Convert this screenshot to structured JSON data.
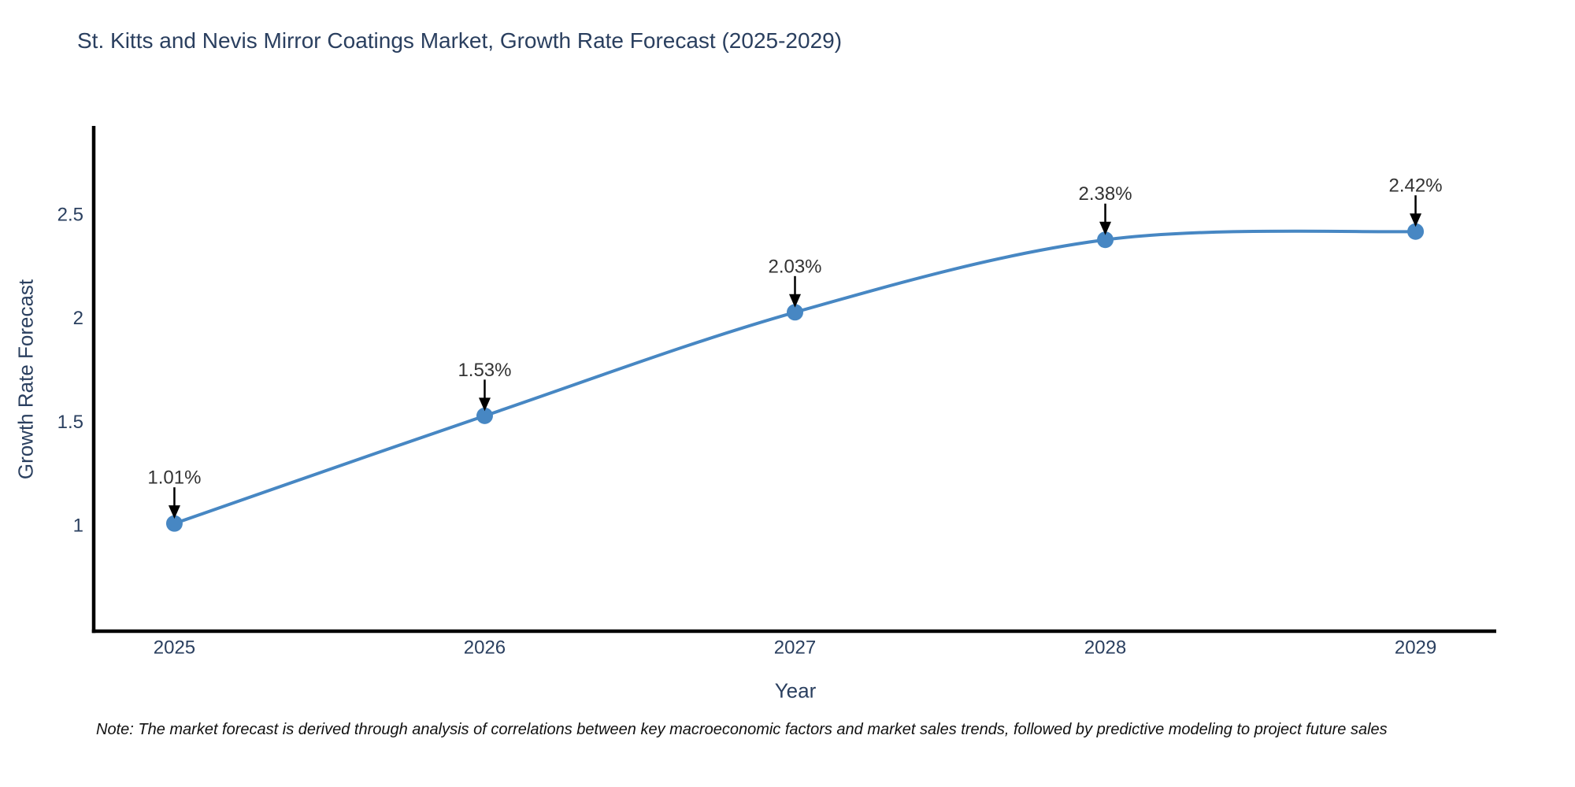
{
  "page": {
    "note": "Note: The market forecast is derived through analysis of correlations between key macroeconomic factors and market sales trends, followed by predictive modeling to project future sales"
  },
  "chart_data": {
    "type": "line",
    "title": "St. Kitts and Nevis Mirror Coatings Market, Growth Rate Forecast (2025-2029)",
    "xlabel": "Year",
    "ylabel": "Growth Rate Forecast",
    "x": [
      2025,
      2026,
      2027,
      2028,
      2029
    ],
    "series": [
      {
        "name": "Growth Rate Forecast",
        "values": [
          1.01,
          1.53,
          2.03,
          2.38,
          2.42
        ]
      }
    ],
    "point_labels": [
      "1.01%",
      "1.53%",
      "2.03%",
      "2.38%",
      "2.42%"
    ],
    "xticks": [
      "2025",
      "2026",
      "2027",
      "2028",
      "2029"
    ],
    "yticks": [
      1,
      1.5,
      2,
      2.5
    ],
    "ytick_labels": [
      "1",
      "1.5",
      "2",
      "2.5"
    ],
    "xlim": [
      2024.74,
      2029.26
    ],
    "ylim": [
      0.49,
      2.93
    ],
    "line_shape": "spline",
    "grid": false,
    "legend_position": "none",
    "colors": {
      "line": "#4787c3",
      "marker": "#4787c3",
      "annotation_arrow": "#000000",
      "annotation_text": "#333333",
      "axis_text": "#2a3f5f",
      "spine": "#000000"
    }
  }
}
